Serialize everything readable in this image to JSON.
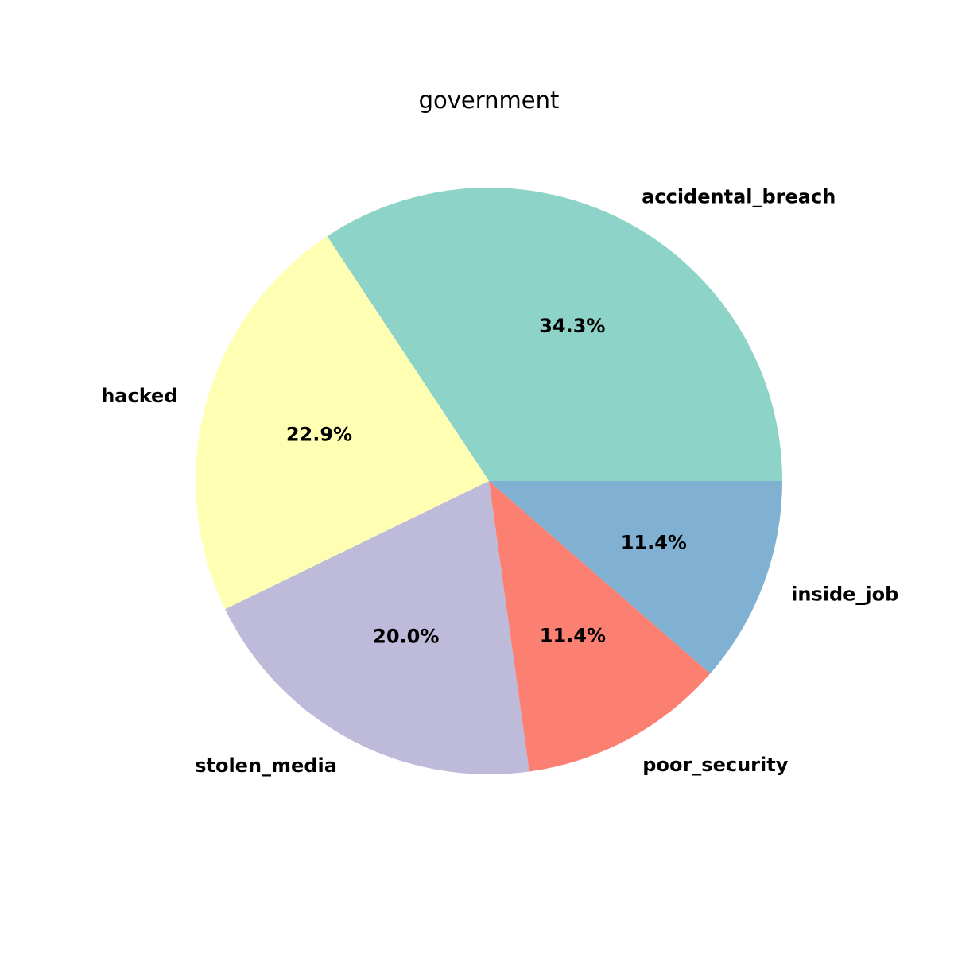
{
  "chart_data": {
    "type": "pie",
    "title": "government",
    "slices": [
      {
        "label": "accidental_breach",
        "value": 34.3,
        "pct_label": "34.3%",
        "color": "#8dd3c7"
      },
      {
        "label": "hacked",
        "value": 22.9,
        "pct_label": "22.9%",
        "color": "#ffffb3"
      },
      {
        "label": "stolen_media",
        "value": 20.0,
        "pct_label": "20.0%",
        "color": "#bebada"
      },
      {
        "label": "poor_security",
        "value": 11.4,
        "pct_label": "11.4%",
        "color": "#fb8072"
      },
      {
        "label": "inside_job",
        "value": 11.4,
        "pct_label": "11.4%",
        "color": "#80b1d3"
      }
    ],
    "start_angle_deg": 0,
    "direction": "counterclockwise",
    "legend": "none"
  }
}
